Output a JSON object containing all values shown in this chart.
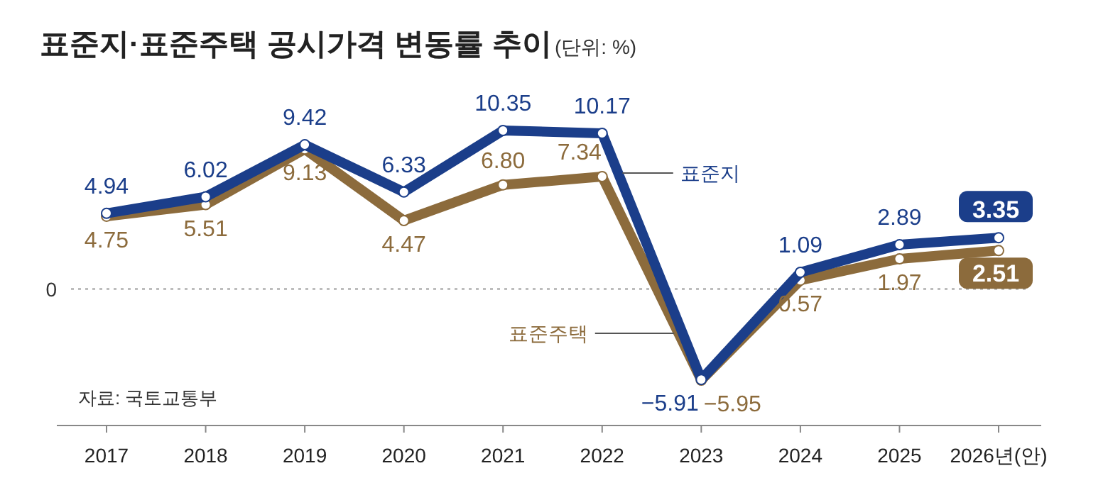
{
  "chart_data": {
    "type": "line",
    "title": "표준지·표준주택 공시가격 변동률 추이",
    "subtitle": "(단위: %)",
    "categories": [
      "2017",
      "2018",
      "2019",
      "2020",
      "2021",
      "2022",
      "2023",
      "2024",
      "2025",
      "2026년(안)"
    ],
    "series": [
      {
        "name": "표준지",
        "color": "#1b3e8a",
        "values": [
          4.94,
          6.02,
          9.42,
          6.33,
          10.35,
          10.17,
          -5.91,
          1.09,
          2.89,
          3.35
        ],
        "value_labels": [
          "4.94",
          "6.02",
          "9.42",
          "6.33",
          "10.35",
          "10.17",
          "−5.91",
          "1.09",
          "2.89",
          "3.35"
        ]
      },
      {
        "name": "표준주택",
        "color": "#8c6b3c",
        "values": [
          4.75,
          5.51,
          9.13,
          4.47,
          6.8,
          7.34,
          -5.95,
          0.57,
          1.97,
          2.51
        ],
        "value_labels": [
          "4.75",
          "5.51",
          "9.13",
          "4.47",
          "6.80",
          "7.34",
          "−5.95",
          "0.57",
          "1.97",
          "2.51"
        ]
      }
    ],
    "ref_lines": [
      {
        "axis": "y",
        "value": 0,
        "label": "0",
        "line_style": "dotted",
        "color": "#999999"
      }
    ],
    "marker": "circle",
    "legend": false,
    "annotations": [
      "자료: 국토교통부"
    ]
  }
}
